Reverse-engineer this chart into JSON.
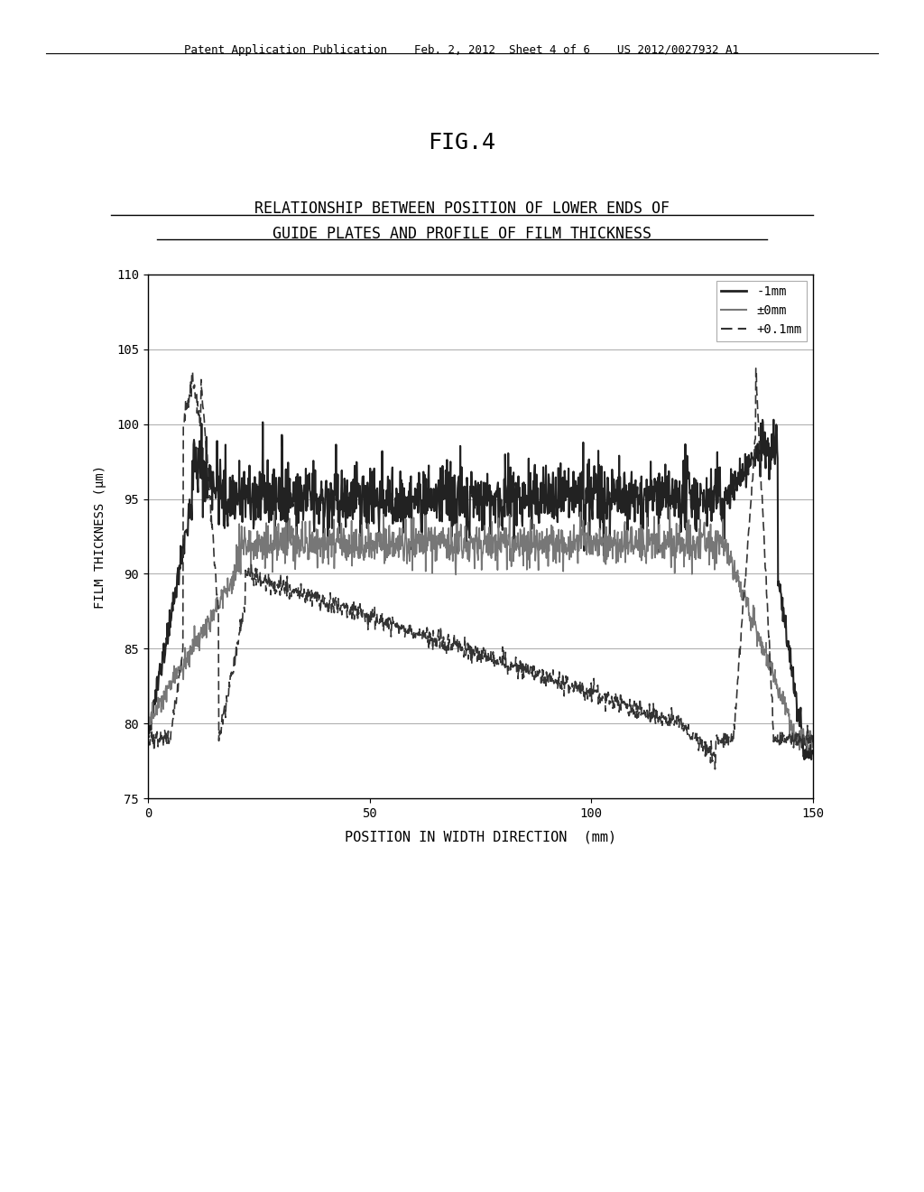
{
  "fig_label": "FIG.4",
  "chart_title_line1": "RELATIONSHIP BETWEEN POSITION OF LOWER ENDS OF",
  "chart_title_line2": "GUIDE PLATES AND PROFILE OF FILM THICKNESS",
  "xlabel": "POSITION IN WIDTH DIRECTION  (mm)",
  "ylabel": "FILM THICKNESS (μm)",
  "xlim": [
    0,
    150
  ],
  "ylim": [
    75,
    110
  ],
  "xticks": [
    0,
    50,
    100,
    150
  ],
  "yticks": [
    75,
    80,
    85,
    90,
    95,
    100,
    105,
    110
  ],
  "legend_labels": [
    "-1mm",
    "±0mm",
    "+0.1mm"
  ],
  "background_color": "#ffffff",
  "header_text": "Patent Application Publication    Feb. 2, 2012  Sheet 4 of 6    US 2012/0027932 A1"
}
